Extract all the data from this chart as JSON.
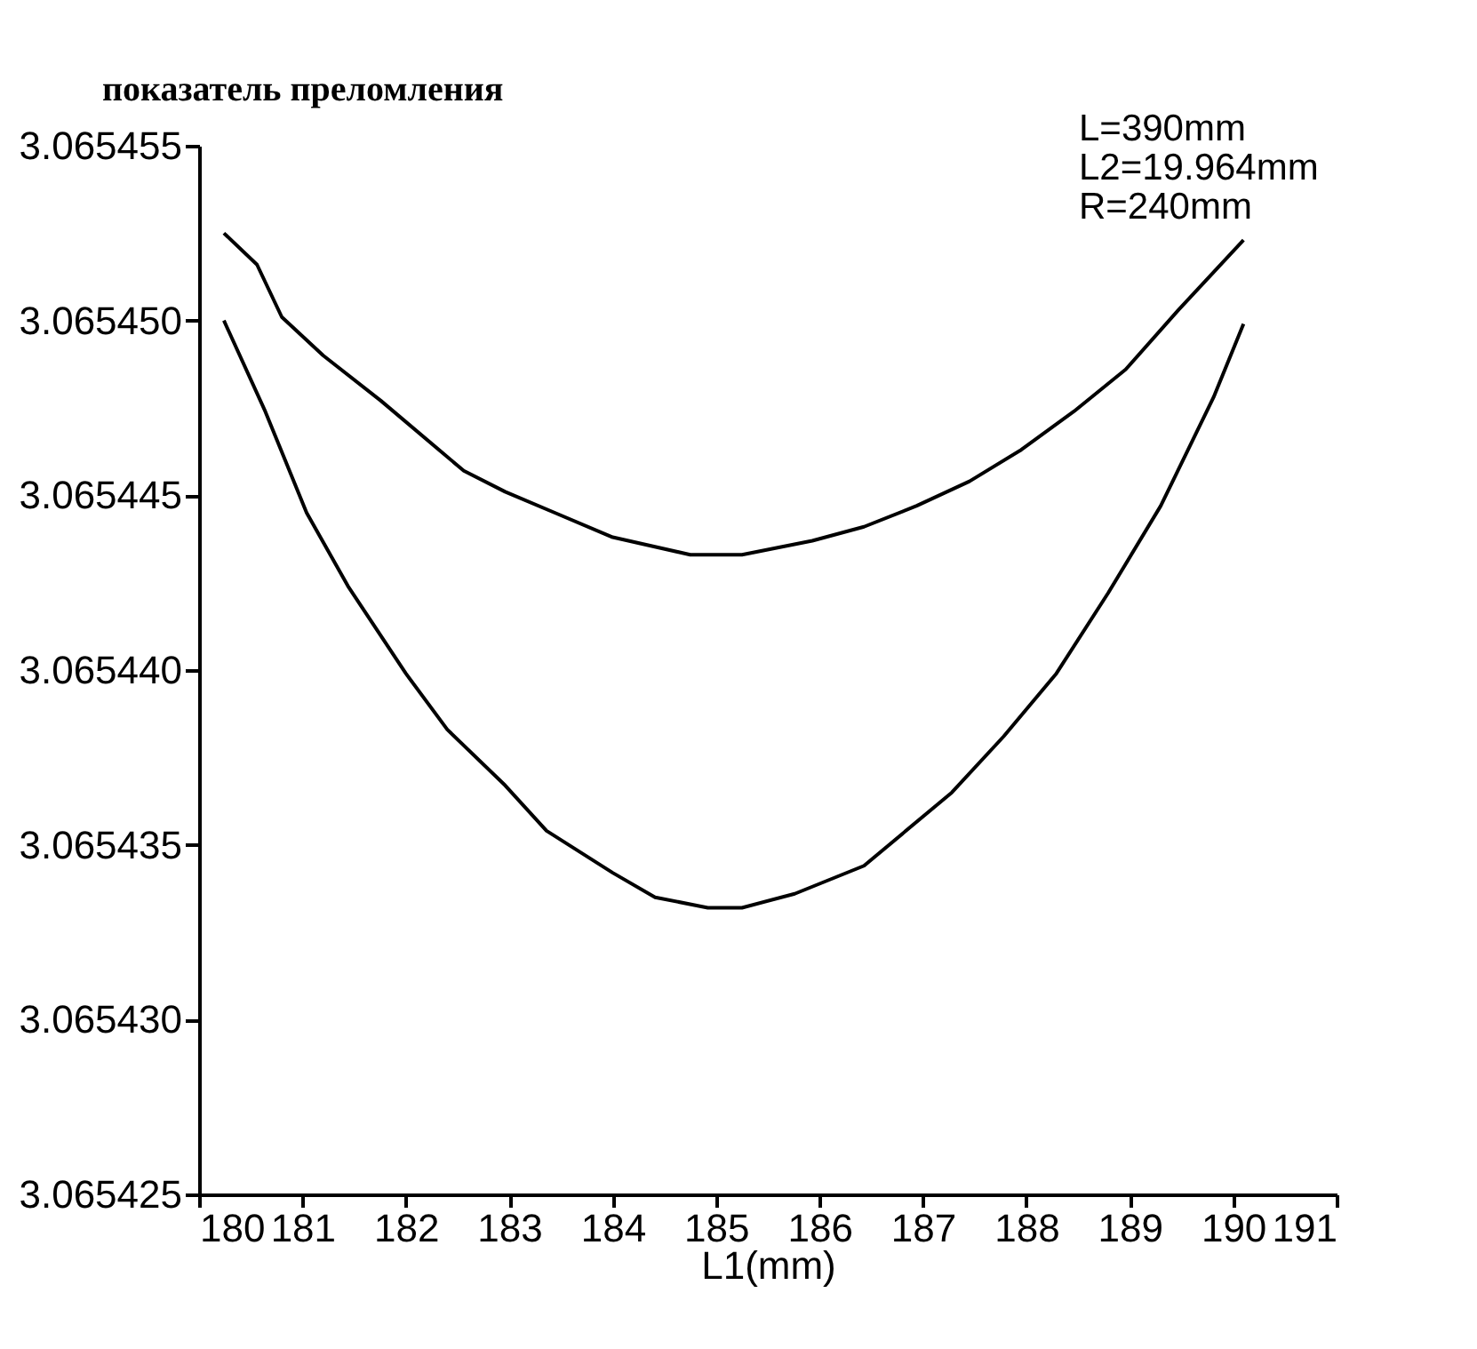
{
  "chart_data": {
    "type": "line",
    "ylabel": "показатель преломления",
    "xlabel": "L1(mm)",
    "annotations": [
      "L=390mm",
      "L2=19.964mm",
      "R=240mm"
    ],
    "xlim": [
      180,
      191
    ],
    "xticks": [
      180,
      181,
      182,
      183,
      184,
      185,
      186,
      187,
      188,
      189,
      190,
      191
    ],
    "ylim": [
      3.065425,
      3.065455
    ],
    "yticks": [
      3.065425,
      {
        "value": 3.06543,
        "label": "3.065430"
      },
      3.065435,
      {
        "value": 3.06544,
        "label": "3.065440"
      },
      3.065445,
      {
        "value": 3.06545,
        "label": "3.065450"
      },
      3.065455
    ],
    "series": [
      {
        "color": "#000000",
        "x": [
          180.24,
          180.56,
          180.8,
          181.2,
          181.76,
          182.56,
          182.96,
          183.44,
          184.0,
          184.75,
          185.25,
          185.93,
          186.43,
          186.94,
          187.45,
          187.95,
          188.46,
          188.96,
          189.47,
          190.1
        ],
        "values": [
          3.0654525,
          3.0654516,
          3.0654501,
          3.065449,
          3.0654477,
          3.0654457,
          3.0654451,
          3.0654445,
          3.0654438,
          3.0654433,
          3.0654433,
          3.0654437,
          3.0654441,
          3.0654447,
          3.0654454,
          3.0654463,
          3.0654474,
          3.0654486,
          3.0654503,
          3.0654523
        ]
      },
      {
        "color": "#000000",
        "x": [
          180.24,
          180.64,
          181.04,
          181.44,
          182.0,
          182.4,
          182.96,
          183.36,
          184.0,
          184.41,
          184.92,
          185.25,
          185.76,
          186.43,
          187.28,
          187.78,
          188.29,
          188.79,
          189.3,
          189.81,
          190.1
        ],
        "values": [
          3.06545,
          3.0654474,
          3.0654445,
          3.0654424,
          3.0654399,
          3.0654383,
          3.0654367,
          3.0654354,
          3.0654342,
          3.0654335,
          3.0654332,
          3.0654332,
          3.0654336,
          3.0654344,
          3.0654365,
          3.0654381,
          3.0654399,
          3.0654422,
          3.0654447,
          3.0654478,
          3.0654499
        ]
      }
    ]
  }
}
